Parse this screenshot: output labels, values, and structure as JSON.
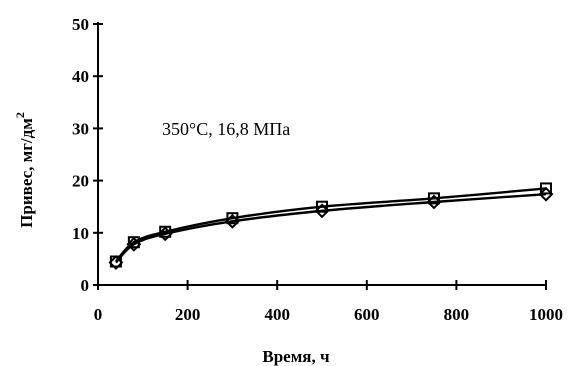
{
  "chart_data": {
    "type": "line",
    "title": "",
    "annotation": "350°C, 16,8 МПа",
    "xlabel": "Время, ч",
    "ylabel": "Привес, мг/дм",
    "ylabel_superscript": "2",
    "xlim": [
      0,
      1000
    ],
    "ylim": [
      0,
      50
    ],
    "xticks": [
      0,
      200,
      400,
      600,
      800,
      1000
    ],
    "yticks": [
      0,
      10,
      20,
      30,
      40,
      50
    ],
    "grid": false,
    "series": [
      {
        "marker": "square",
        "x": [
          40,
          80,
          150,
          300,
          500,
          750,
          1000
        ],
        "y": [
          4.5,
          8.2,
          10.2,
          12.8,
          15.0,
          16.6,
          18.5
        ]
      },
      {
        "marker": "diamond",
        "x": [
          40,
          80,
          150,
          300,
          500,
          750,
          1000
        ],
        "y": [
          4.3,
          7.8,
          9.8,
          12.2,
          14.2,
          15.9,
          17.4
        ]
      }
    ]
  }
}
